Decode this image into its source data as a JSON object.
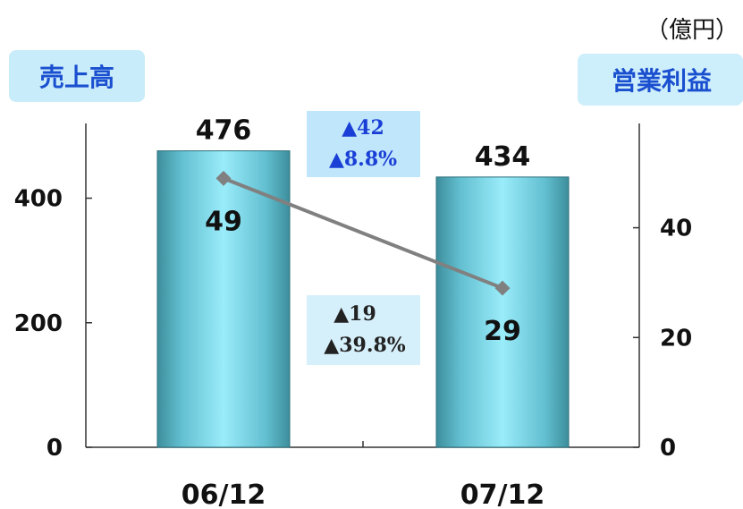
{
  "chart_data": {
    "type": "bar+line",
    "unit_label": "（億円）",
    "categories": [
      "06/12",
      "07/12"
    ],
    "bars": {
      "axis_title": "売上高",
      "values": [
        476,
        434
      ],
      "value_labels": [
        "476",
        "434"
      ],
      "ylim": [
        0,
        520
      ],
      "ticks": [
        0,
        200,
        400
      ],
      "tick_labels": [
        "0",
        "200",
        "400"
      ],
      "color": "#7fd6e6"
    },
    "line": {
      "axis_title": "営業利益",
      "values": [
        49,
        29
      ],
      "value_labels": [
        "49",
        "29"
      ],
      "ylim": [
        0,
        59
      ],
      "ticks": [
        0,
        20,
        40
      ],
      "tick_labels": [
        "0",
        "20",
        "40"
      ],
      "color": "#808080"
    },
    "annotations": [
      {
        "line1": "▲42",
        "line2": "▲8.8%",
        "color": "#1a3fd6",
        "bg": "#bfe6fb"
      },
      {
        "line1": "▲19",
        "line2": "▲39.8%",
        "color": "#222222",
        "bg": "#d6f0fb"
      }
    ]
  }
}
